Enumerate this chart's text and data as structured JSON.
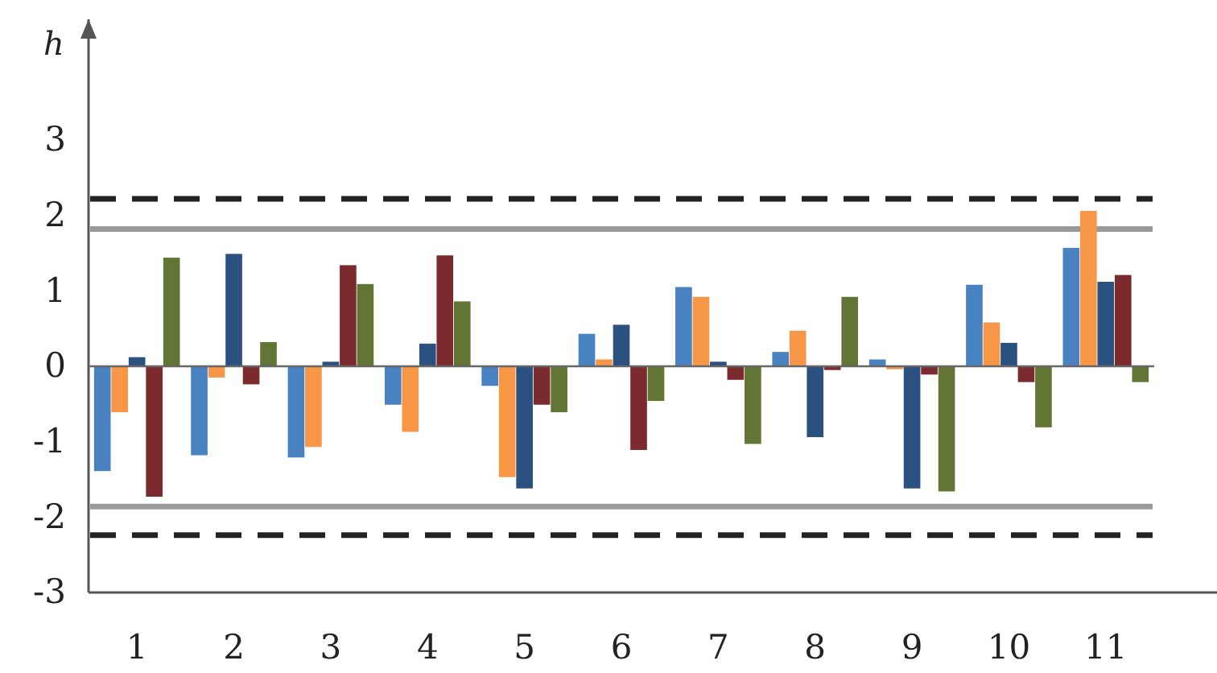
{
  "chart_data": {
    "type": "bar",
    "ylabel": "h",
    "categories": [
      "1",
      "2",
      "3",
      "4",
      "5",
      "6",
      "7",
      "8",
      "9",
      "10",
      "11"
    ],
    "series": [
      {
        "color": "#4a81c0",
        "values": [
          -1.39,
          -1.18,
          -1.21,
          -0.51,
          -0.26,
          0.43,
          1.05,
          0.19,
          0.09,
          1.08,
          1.57
        ]
      },
      {
        "color": "#f79646",
        "values": [
          -0.61,
          -0.15,
          -1.07,
          -0.87,
          -1.47,
          0.09,
          0.92,
          0.47,
          -0.04,
          0.58,
          2.06
        ]
      },
      {
        "color": "#2a5180",
        "values": [
          0.12,
          1.49,
          0.06,
          0.3,
          -1.62,
          0.55,
          0.06,
          -0.94,
          -1.62,
          0.31,
          1.12
        ]
      },
      {
        "color": "#7b2b2d",
        "values": [
          -1.73,
          -0.24,
          1.34,
          1.47,
          -0.51,
          -1.11,
          -0.18,
          -0.05,
          -0.11,
          -0.21,
          1.21
        ]
      },
      {
        "color": "#627535",
        "values": [
          1.44,
          0.32,
          1.09,
          0.86,
          -0.61,
          -0.46,
          -1.03,
          0.92,
          -1.66,
          -0.81,
          -0.21
        ]
      }
    ],
    "ylim": [
      -3,
      4.6
    ],
    "yticks": [
      -3,
      -2,
      -1,
      0,
      1,
      2,
      3
    ],
    "ref_lines": [
      {
        "axis": "y",
        "value": 2.22,
        "color": "#222222",
        "line_style": "dashed"
      },
      {
        "axis": "y",
        "value": 1.82,
        "color": "#9a9a9a",
        "line_style": "solid"
      },
      {
        "axis": "y",
        "value": -1.86,
        "color": "#9a9a9a",
        "line_style": "solid"
      },
      {
        "axis": "y",
        "value": -2.24,
        "color": "#222222",
        "line_style": "dashed"
      }
    ]
  }
}
